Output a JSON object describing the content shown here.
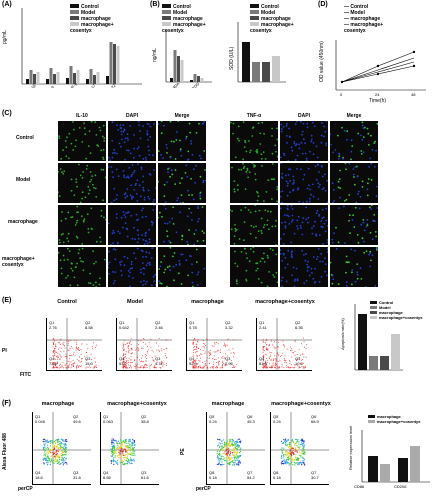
{
  "panels": {
    "A": {
      "label": "(A)",
      "ylabel": "pg/mL",
      "legend": [
        "Control",
        "Model",
        "macrophage",
        "macrophage+ cosentyx"
      ]
    },
    "B": {
      "label": "(B)",
      "ylabel": "ng/mL",
      "ylabel2": "SOD (U/L)",
      "legend": [
        "Control",
        "Model",
        "macrophage",
        "macrophage+ cosentyx"
      ]
    },
    "C": {
      "label": "(C)",
      "headers": [
        "IL-10",
        "DAPI",
        "Merge",
        "TNF-α",
        "DAPI",
        "Merge"
      ],
      "rows": [
        "Control",
        "Model",
        "macrophage",
        "macrophage+ cosentyx"
      ]
    },
    "D": {
      "label": "(D)",
      "ylabel": "OD value (450nm)",
      "xlabel": "Time(h)",
      "legend": [
        "Control",
        "Model",
        "macrophage",
        "macrophage+ cosentyx"
      ]
    },
    "E": {
      "label": "(E)",
      "titles": [
        "Control",
        "Model",
        "macrophage",
        "macrophage+cosentyx"
      ],
      "ylab": "PI",
      "xlab": "FITC",
      "quadrants": [
        {
          "q1": "2.76",
          "q2": "8.58",
          "q3": "15.0",
          "q4": "73.6"
        },
        {
          "q1": "0.642",
          "q2": "2.46",
          "q3": "4.31",
          "q4": "93.2"
        },
        {
          "q1": "0.78",
          "q2": "3.32",
          "q3": "2.96",
          "q4": "92.9"
        },
        {
          "q1": "2.41",
          "q2": "6.35",
          "q3": "10.6",
          "q4": "81.6"
        }
      ],
      "bar_ylabel": "Apoptosis rate(%)",
      "legend": [
        "Control",
        "Model",
        "macrophage",
        "macrophage+cosentyx"
      ]
    },
    "F": {
      "label": "(F)",
      "titles": [
        "macrophage",
        "macrophage+cosentyx",
        "macrophage",
        "macrophage+cosentyx"
      ],
      "ylab1": "Alexa Fluor 488",
      "ylab2": "PE",
      "xlab": "perCP",
      "quadrants": [
        {
          "a": "Q1",
          "av": "0.045",
          "b": "Q2",
          "bv": "49.6",
          "c": "Q4",
          "cv": "18.6",
          "d": "Q3",
          "dv": "31.8"
        },
        {
          "a": "Q1",
          "av": "0.063",
          "b": "Q2",
          "bv": "38.8",
          "c": "Q4",
          "cv": "8.56",
          "d": "Q3",
          "dv": "61.6"
        },
        {
          "a": "Q5",
          "av": "0.24",
          "b": "Q6",
          "bv": "45.3",
          "c": "Q8",
          "cv": "0.18",
          "d": "Q7",
          "dv": "54.2"
        },
        {
          "a": "Q5",
          "av": "0.24",
          "b": "Q6",
          "bv": "68.9",
          "c": "Q8",
          "cv": "0.18",
          "d": "Q7",
          "dv": "30.7"
        }
      ],
      "bar_ylabel": "Relative expression level",
      "legend": [
        "macrophage",
        "macrophage+cosentyx"
      ],
      "categories": [
        "CD86",
        "CD206"
      ]
    }
  },
  "colors": {
    "control": "#111111",
    "model": "#7a7a7a",
    "macrophage": "#4a4a4a",
    "cosentyx": "#c8c8c8"
  }
}
